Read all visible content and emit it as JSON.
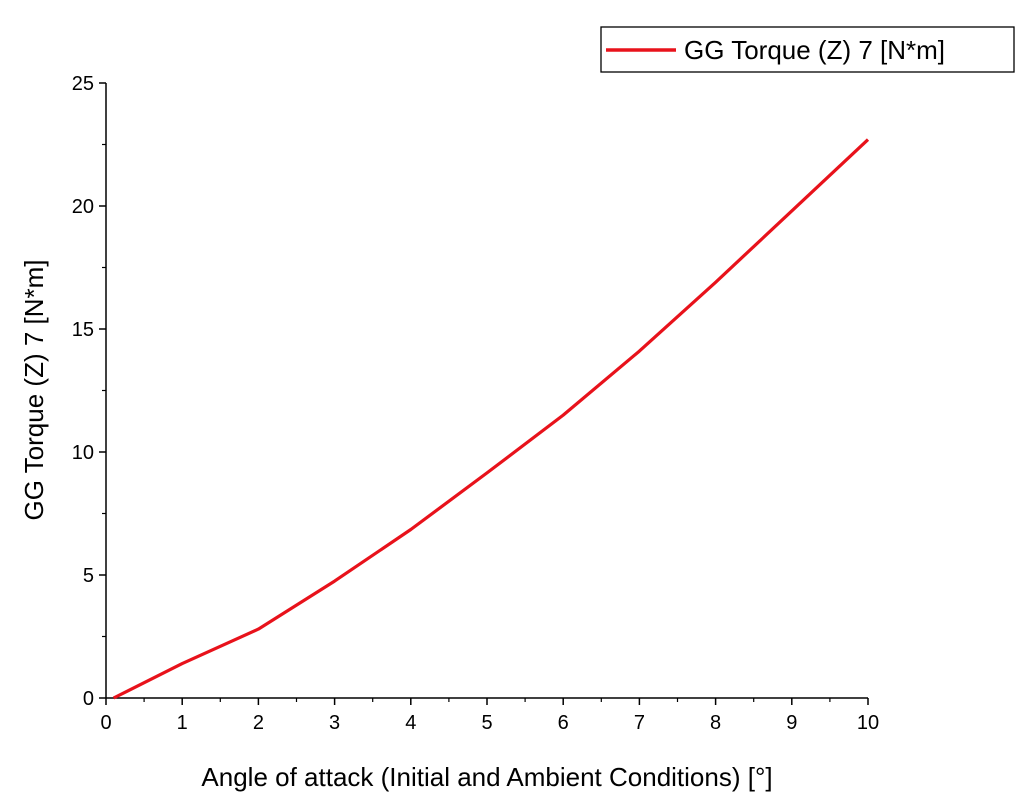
{
  "chart_data": {
    "type": "line",
    "title": "",
    "xlabel": "Angle of attack (Initial and Ambient Conditions) [°]",
    "ylabel": "GG Torque (Z) 7 [N*m]",
    "xlim": [
      0,
      10
    ],
    "ylim": [
      0,
      25
    ],
    "x_ticks": [
      0,
      1,
      2,
      3,
      4,
      5,
      6,
      7,
      8,
      9,
      10
    ],
    "y_ticks": [
      0,
      5,
      10,
      15,
      20,
      25
    ],
    "grid": false,
    "legend_position": "top-right",
    "series": [
      {
        "name": "GG Torque (Z) 7 [N*m]",
        "color": "#e8121b",
        "x": [
          0.1,
          1,
          2,
          3,
          4,
          5,
          6,
          7,
          8,
          9,
          10
        ],
        "y": [
          0,
          1.4,
          2.8,
          4.75,
          6.85,
          9.15,
          11.5,
          14.1,
          16.9,
          19.8,
          22.7
        ]
      }
    ]
  }
}
